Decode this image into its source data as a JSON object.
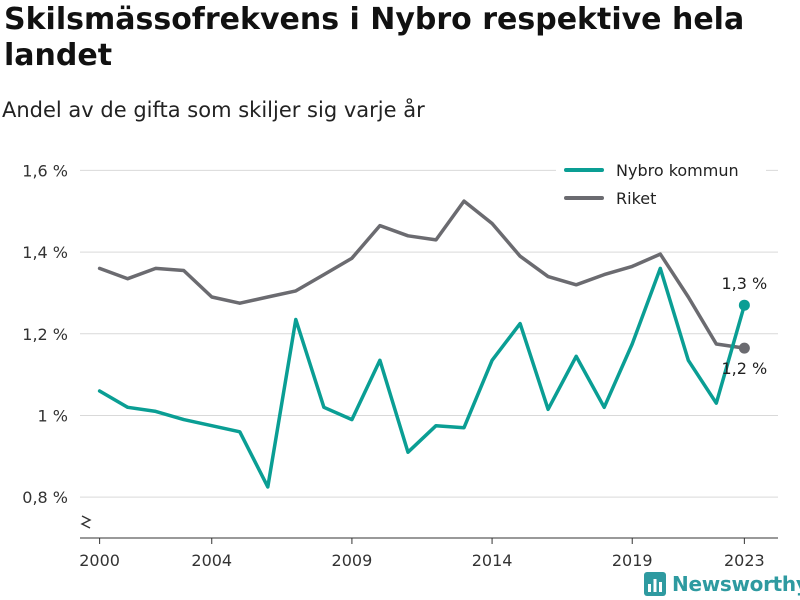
{
  "title": "Skilsmässofrekvens i Nybro respektive hela landet",
  "subtitle": "Andel av de gifta som skiljer sig varje år",
  "brand": {
    "name": "Newsworthy",
    "icon": "bar-chart-icon"
  },
  "chart_data": {
    "type": "line",
    "x": [
      2000,
      2001,
      2002,
      2003,
      2004,
      2005,
      2006,
      2007,
      2008,
      2009,
      2010,
      2011,
      2012,
      2013,
      2014,
      2015,
      2016,
      2017,
      2018,
      2019,
      2020,
      2021,
      2022,
      2023
    ],
    "series": [
      {
        "name": "Nybro kommun",
        "color": "#0a9e94",
        "values": [
          1.06,
          1.02,
          1.01,
          0.99,
          0.975,
          0.96,
          0.825,
          1.235,
          1.02,
          0.99,
          1.135,
          0.91,
          0.975,
          0.97,
          1.135,
          1.225,
          1.015,
          1.145,
          1.02,
          1.175,
          1.36,
          1.135,
          1.03,
          1.27
        ],
        "end_label": "1,3 %"
      },
      {
        "name": "Riket",
        "color": "#6b6b70",
        "values": [
          1.36,
          1.335,
          1.36,
          1.355,
          1.29,
          1.275,
          1.29,
          1.305,
          1.345,
          1.385,
          1.465,
          1.44,
          1.43,
          1.525,
          1.47,
          1.39,
          1.34,
          1.32,
          1.345,
          1.365,
          1.395,
          1.29,
          1.175,
          1.165
        ],
        "end_label": "1,2 %"
      }
    ],
    "xticks": [
      2000,
      2004,
      2009,
      2014,
      2019,
      2023
    ],
    "xtick_labels": [
      "2000",
      "2004",
      "2009",
      "2014",
      "2019",
      "2023"
    ],
    "yticks": [
      0.8,
      1.0,
      1.2,
      1.4,
      1.6
    ],
    "ytick_labels": [
      "0,8 %",
      "1 %",
      "1,2 %",
      "1,4 %",
      "1,6 %"
    ],
    "xlim": [
      1999.3,
      2024.2
    ],
    "ylim": [
      0.7,
      1.65
    ],
    "axis_break": true,
    "grid": true,
    "legend_position": "top-right"
  }
}
